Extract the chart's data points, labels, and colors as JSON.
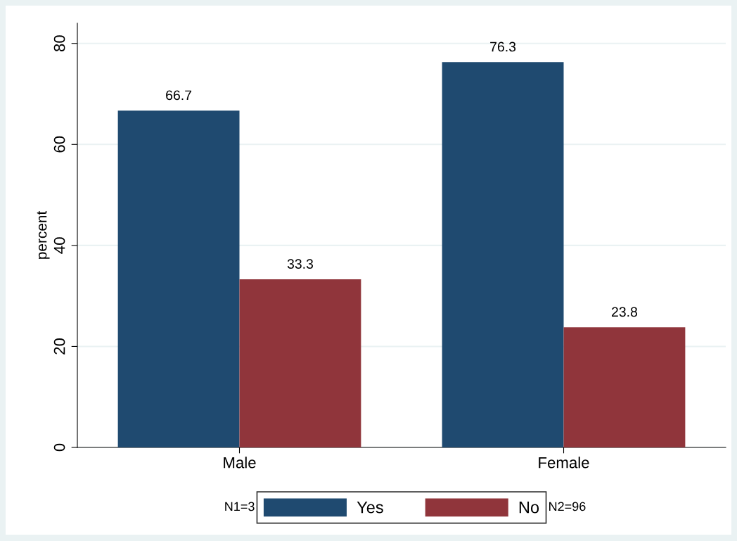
{
  "chart_data": {
    "type": "bar",
    "ylabel": "percent",
    "categories": [
      "Male",
      "Female"
    ],
    "series": [
      {
        "name": "Yes",
        "color": "#1f4a70",
        "values": [
          66.7,
          76.3
        ]
      },
      {
        "name": "No",
        "color": "#90353b",
        "values": [
          33.3,
          23.8
        ]
      }
    ],
    "ylim": [
      0,
      84
    ],
    "yticks": [
      0,
      20,
      40,
      60,
      80
    ],
    "grid": "y",
    "legend": "bottom",
    "data_labels": true,
    "annotations": [
      "N1=3",
      "N2=96"
    ]
  }
}
